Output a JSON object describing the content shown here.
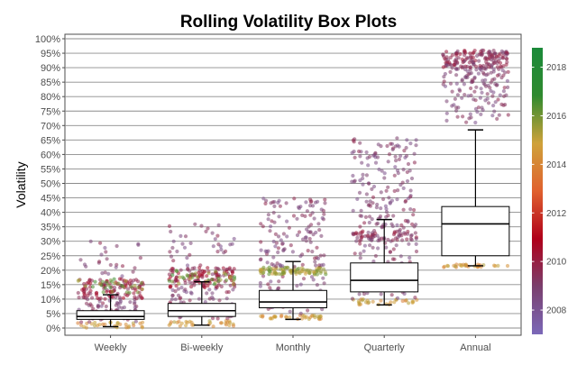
{
  "chart_data": {
    "type": "box",
    "title": "Rolling Volatility Box Plots",
    "xlabel": "",
    "ylabel": "Volatility",
    "ylim": [
      0,
      100
    ],
    "y_ticks": [
      "0%",
      "5%",
      "10%",
      "15%",
      "20%",
      "25%",
      "30%",
      "35%",
      "40%",
      "45%",
      "50%",
      "55%",
      "60%",
      "65%",
      "70%",
      "75%",
      "80%",
      "85%",
      "90%",
      "95%",
      "100%"
    ],
    "grid": "horizontal",
    "categories": [
      "Weekly",
      "Bi-weekly",
      "Monthly",
      "Quarterly",
      "Annual"
    ],
    "boxes": [
      {
        "whisker_low": 0.5,
        "q1": 3.0,
        "median": 4.0,
        "q3": 6.0,
        "whisker_high": 11.5
      },
      {
        "whisker_low": 1.0,
        "q1": 4.0,
        "median": 6.0,
        "q3": 8.5,
        "whisker_high": 16.0
      },
      {
        "whisker_low": 3.0,
        "q1": 7.0,
        "median": 9.0,
        "q3": 13.0,
        "whisker_high": 23.0
      },
      {
        "whisker_low": 8.0,
        "q1": 12.5,
        "median": 16.5,
        "q3": 22.5,
        "whisker_high": 37.5
      },
      {
        "whisker_low": 21.5,
        "q1": 25.0,
        "median": 36.0,
        "q3": 42.0,
        "whisker_high": 68.5
      }
    ],
    "jitter_points": [
      {
        "clusters": [
          {
            "low": 0,
            "high": 2,
            "count": 30,
            "color_year": 2014.5
          },
          {
            "low": 2,
            "high": 10,
            "count": 70,
            "color_year": 2009
          },
          {
            "low": 10,
            "high": 17,
            "count": 110,
            "color_year": 2010
          },
          {
            "low": 12,
            "high": 17,
            "count": 30,
            "color_year": 2016
          },
          {
            "low": 17,
            "high": 30,
            "count": 25,
            "color_year": 2009
          }
        ]
      },
      {
        "clusters": [
          {
            "low": 0.5,
            "high": 2.5,
            "count": 30,
            "color_year": 2014.5
          },
          {
            "low": 3,
            "high": 14,
            "count": 70,
            "color_year": 2009
          },
          {
            "low": 14,
            "high": 21,
            "count": 120,
            "color_year": 2010
          },
          {
            "low": 15,
            "high": 20,
            "count": 35,
            "color_year": 2016
          },
          {
            "low": 21,
            "high": 37,
            "count": 35,
            "color_year": 2009
          }
        ]
      },
      {
        "clusters": [
          {
            "low": 3,
            "high": 4.5,
            "count": 35,
            "color_year": 2014.5
          },
          {
            "low": 5,
            "high": 18,
            "count": 60,
            "color_year": 2009
          },
          {
            "low": 18.5,
            "high": 21,
            "count": 90,
            "color_year": 2015.5
          },
          {
            "low": 21,
            "high": 45,
            "count": 120,
            "color_year": 2009
          }
        ]
      },
      {
        "clusters": [
          {
            "low": 8,
            "high": 10,
            "count": 30,
            "color_year": 2014.5
          },
          {
            "low": 10,
            "high": 30,
            "count": 80,
            "color_year": 2009
          },
          {
            "low": 30,
            "high": 34,
            "count": 70,
            "color_year": 2009.5
          },
          {
            "low": 34,
            "high": 66,
            "count": 150,
            "color_year": 2009
          }
        ]
      },
      {
        "clusters": [
          {
            "low": 21,
            "high": 22,
            "count": 30,
            "color_year": 2014.5
          },
          {
            "low": 71,
            "high": 80,
            "count": 40,
            "color_year": 2009
          },
          {
            "low": 80,
            "high": 90,
            "count": 90,
            "color_year": 2009
          },
          {
            "low": 90,
            "high": 96,
            "count": 150,
            "color_year": 2009.5
          }
        ]
      }
    ],
    "legend": {
      "type": "colorbar",
      "placement": "right",
      "min": 2007,
      "max": 2018.8,
      "ticks": [
        "2008",
        "2010",
        "2012",
        "2014",
        "2016",
        "2018"
      ],
      "colors": [
        "#7b68b8",
        "#7a3f6d",
        "#b0001a",
        "#e0612e",
        "#cfa23a",
        "#2f8a2f",
        "#1b8a3a"
      ]
    }
  }
}
